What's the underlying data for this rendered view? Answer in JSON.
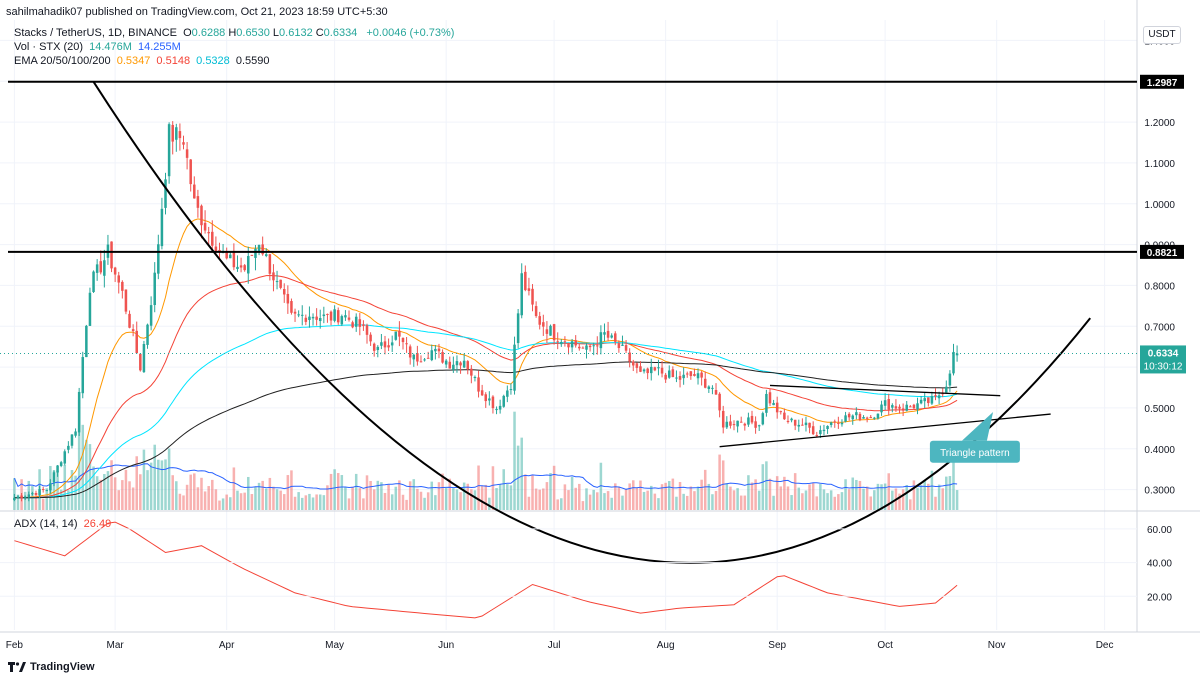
{
  "header": {
    "published": "sahilmahadik07 published on TradingView.com, Oct 21, 2023 18:59 UTC+5:30"
  },
  "legend": {
    "symbol": "Stacks / TetherUS, 1D, BINANCE",
    "ohlc": [
      {
        "k": "O",
        "v": "0.6288"
      },
      {
        "k": "H",
        "v": "0.6530"
      },
      {
        "k": "L",
        "v": "0.6132"
      },
      {
        "k": "C",
        "v": "0.6334"
      }
    ],
    "change": "+0.0046 (+0.73%)",
    "vol_label": "Vol · STX (20)",
    "vol_val1": "14.476M",
    "vol_val2": "14.255M",
    "ema_label": "EMA 20/50/100/200",
    "ema_vals": [
      "0.5347",
      "0.5148",
      "0.5328",
      "0.5590"
    ],
    "adx_label": "ADX (14, 14)",
    "adx_val": "26.49"
  },
  "currency": "USDT",
  "price_axis": {
    "ticks": [
      "1.4000",
      "1.3000",
      "1.2000",
      "1.1000",
      "1.0000",
      "0.9000",
      "0.8000",
      "0.7000",
      "0.6000",
      "0.5000",
      "0.4000",
      "0.3000"
    ],
    "tick_values": [
      1.4,
      1.3,
      1.2,
      1.1,
      1.0,
      0.9,
      0.8,
      0.7,
      0.6,
      0.5,
      0.4,
      0.3
    ],
    "levels": [
      {
        "label": "1.2987",
        "value": 1.2987
      },
      {
        "label": "0.8821",
        "value": 0.8821
      }
    ],
    "last_price": {
      "label": "0.6334",
      "value": 0.6334,
      "countdown": "10:30:12"
    }
  },
  "adx_axis": {
    "ticks": [
      "60.00",
      "40.00",
      "20.00"
    ],
    "tick_values": [
      60,
      40,
      20
    ]
  },
  "time_axis": {
    "labels": [
      "Feb",
      "Mar",
      "Apr",
      "May",
      "Jun",
      "Jul",
      "Aug",
      "Sep",
      "Oct",
      "Nov",
      "Dec"
    ]
  },
  "annotation": {
    "triangle_label": "Triangle pattern"
  },
  "colors": {
    "up": "#26a69a",
    "down": "#ef5350",
    "ema20": "#ff9800",
    "ema50": "#f44336",
    "ema100": "#00e5ff",
    "ema200": "#212121",
    "volume_ma": "#2962ff",
    "adx": "#f44336",
    "label_box": "#4db6c0"
  },
  "brand": "TradingView",
  "chart_data": {
    "type": "candlestick",
    "title": "Stacks / TetherUS, 1D, BINANCE",
    "x_range": [
      "2023-01-28",
      "2023-12-10"
    ],
    "y_range": [
      0.25,
      1.45
    ],
    "horizontal_levels": [
      1.2987,
      0.8821
    ],
    "last_close": 0.6334,
    "day_high": 0.653,
    "day_low": 0.6132,
    "day_open": 0.6288,
    "closes_approx": [
      [
        "2023-02-01",
        0.28
      ],
      [
        "2023-02-10",
        0.3
      ],
      [
        "2023-02-18",
        0.45
      ],
      [
        "2023-02-22",
        0.8
      ],
      [
        "2023-02-27",
        0.88
      ],
      [
        "2023-03-03",
        0.78
      ],
      [
        "2023-03-08",
        0.6
      ],
      [
        "2023-03-12",
        0.82
      ],
      [
        "2023-03-16",
        1.17
      ],
      [
        "2023-03-20",
        1.16
      ],
      [
        "2023-03-23",
        1.0
      ],
      [
        "2023-03-27",
        0.93
      ],
      [
        "2023-04-01",
        0.86
      ],
      [
        "2023-04-06",
        0.84
      ],
      [
        "2023-04-10",
        0.91
      ],
      [
        "2023-04-15",
        0.8
      ],
      [
        "2023-04-19",
        0.72
      ],
      [
        "2023-04-24",
        0.73
      ],
      [
        "2023-04-29",
        0.72
      ],
      [
        "2023-05-03",
        0.73
      ],
      [
        "2023-05-08",
        0.7
      ],
      [
        "2023-05-13",
        0.64
      ],
      [
        "2023-05-18",
        0.68
      ],
      [
        "2023-05-23",
        0.62
      ],
      [
        "2023-05-28",
        0.64
      ],
      [
        "2023-06-02",
        0.61
      ],
      [
        "2023-06-06",
        0.62
      ],
      [
        "2023-06-10",
        0.55
      ],
      [
        "2023-06-15",
        0.5
      ],
      [
        "2023-06-19",
        0.56
      ],
      [
        "2023-06-22",
        0.82
      ],
      [
        "2023-06-26",
        0.72
      ],
      [
        "2023-07-01",
        0.68
      ],
      [
        "2023-07-06",
        0.66
      ],
      [
        "2023-07-10",
        0.64
      ],
      [
        "2023-07-15",
        0.68
      ],
      [
        "2023-07-20",
        0.64
      ],
      [
        "2023-07-25",
        0.58
      ],
      [
        "2023-07-30",
        0.59
      ],
      [
        "2023-08-04",
        0.57
      ],
      [
        "2023-08-09",
        0.58
      ],
      [
        "2023-08-14",
        0.55
      ],
      [
        "2023-08-17",
        0.46
      ],
      [
        "2023-08-22",
        0.47
      ],
      [
        "2023-08-27",
        0.46
      ],
      [
        "2023-08-29",
        0.53
      ],
      [
        "2023-09-03",
        0.47
      ],
      [
        "2023-09-08",
        0.46
      ],
      [
        "2023-09-12",
        0.44
      ],
      [
        "2023-09-17",
        0.47
      ],
      [
        "2023-09-22",
        0.48
      ],
      [
        "2023-09-27",
        0.48
      ],
      [
        "2023-10-01",
        0.51
      ],
      [
        "2023-10-06",
        0.5
      ],
      [
        "2023-10-11",
        0.51
      ],
      [
        "2023-10-15",
        0.52
      ],
      [
        "2023-10-18",
        0.56
      ],
      [
        "2023-10-20",
        0.63
      ],
      [
        "2023-10-21",
        0.6334
      ]
    ],
    "adx_approx": [
      [
        "2023-02-01",
        53
      ],
      [
        "2023-02-15",
        44
      ],
      [
        "2023-02-28",
        65
      ],
      [
        "2023-03-05",
        60
      ],
      [
        "2023-03-15",
        46
      ],
      [
        "2023-03-25",
        50
      ],
      [
        "2023-04-05",
        37
      ],
      [
        "2023-04-20",
        22
      ],
      [
        "2023-05-05",
        14
      ],
      [
        "2023-05-25",
        10
      ],
      [
        "2023-06-10",
        7
      ],
      [
        "2023-06-25",
        27
      ],
      [
        "2023-07-10",
        17
      ],
      [
        "2023-07-25",
        10
      ],
      [
        "2023-08-05",
        13
      ],
      [
        "2023-08-20",
        15
      ],
      [
        "2023-09-02",
        33
      ],
      [
        "2023-09-15",
        22
      ],
      [
        "2023-09-25",
        18
      ],
      [
        "2023-10-05",
        14
      ],
      [
        "2023-10-15",
        16
      ],
      [
        "2023-10-21",
        26.49
      ]
    ],
    "annotations": [
      "Triangle pattern"
    ]
  }
}
